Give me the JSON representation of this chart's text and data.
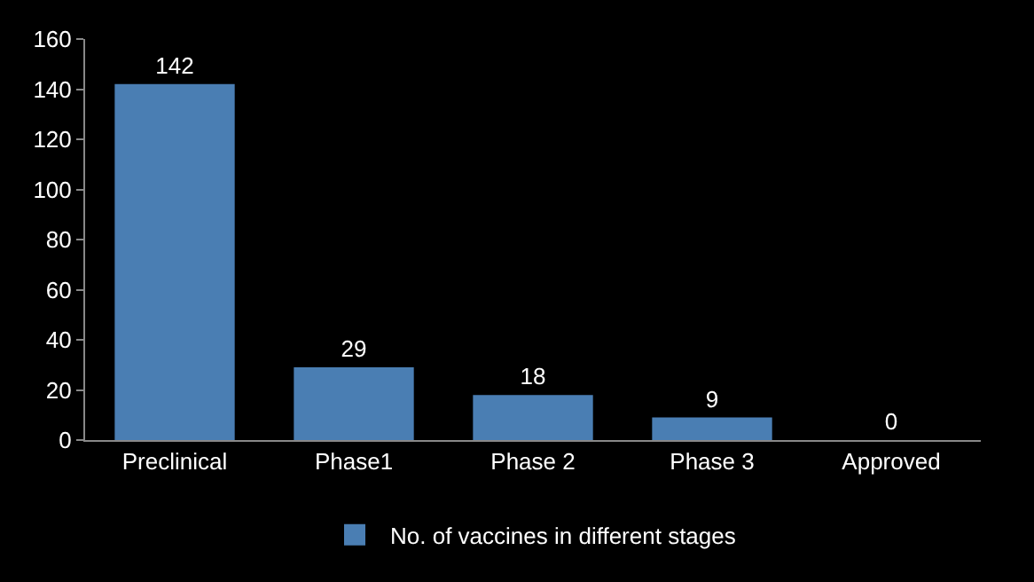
{
  "chart_data": {
    "type": "bar",
    "categories": [
      "Preclinical",
      "Phase1",
      "Phase 2",
      "Phase 3",
      "Approved"
    ],
    "series": [
      {
        "name": "No. of vaccines in different stages",
        "color": "#4a7eb3",
        "values": [
          142,
          29,
          18,
          9,
          0
        ]
      }
    ],
    "ylim": [
      0,
      160
    ],
    "yticks": [
      0,
      20,
      40,
      60,
      80,
      100,
      120,
      140,
      160
    ],
    "data_labels": true,
    "grid": false,
    "legend": "bottom"
  }
}
